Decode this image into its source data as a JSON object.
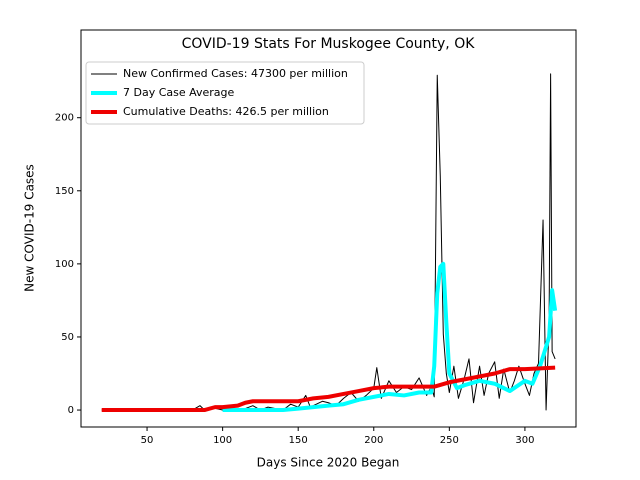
{
  "chart_data": {
    "type": "line",
    "title": "COVID-19 Stats For Muskogee County, OK",
    "x_label": "Days Since 2020 Began",
    "y_label": "New COVID-19 Cases",
    "xlim": [
      6.3,
      333.8
    ],
    "ylim": [
      -11.6,
      260
    ],
    "xticks": [
      50,
      100,
      150,
      200,
      250,
      300
    ],
    "yticks": [
      0,
      50,
      100,
      150,
      200
    ],
    "legend": "upper left",
    "series": [
      {
        "name": "New Confirmed Cases: 47300 per million",
        "color": "#000000",
        "line_width": 1,
        "x": [
          20,
          30,
          40,
          50,
          60,
          70,
          80,
          85,
          88,
          92,
          96,
          100,
          105,
          110,
          115,
          120,
          125,
          130,
          135,
          140,
          145,
          150,
          155,
          158,
          162,
          166,
          170,
          175,
          180,
          185,
          190,
          195,
          200,
          202,
          205,
          210,
          215,
          220,
          225,
          230,
          235,
          238,
          240,
          242,
          244,
          246,
          248,
          250,
          253,
          256,
          260,
          263,
          266,
          270,
          273,
          276,
          280,
          283,
          286,
          290,
          293,
          296,
          300,
          303,
          306,
          309,
          312,
          314,
          316,
          317,
          318,
          320
        ],
        "values": [
          0,
          0,
          0,
          0,
          0,
          0,
          0,
          3,
          0,
          2,
          1,
          0,
          2,
          0,
          1,
          3,
          0,
          2,
          1,
          0,
          4,
          2,
          10,
          2,
          4,
          6,
          5,
          3,
          8,
          12,
          6,
          10,
          15,
          29,
          8,
          20,
          12,
          16,
          14,
          22,
          10,
          16,
          9,
          229,
          160,
          52,
          25,
          12,
          30,
          8,
          22,
          35,
          5,
          30,
          10,
          25,
          33,
          8,
          28,
          12,
          20,
          30,
          18,
          10,
          25,
          32,
          130,
          0,
          60,
          230,
          40,
          35
        ]
      },
      {
        "name": "7 Day Case Average",
        "color": "#00ffff",
        "line_width": 4,
        "x": [
          100,
          110,
          120,
          130,
          140,
          150,
          160,
          170,
          180,
          190,
          200,
          210,
          220,
          230,
          238,
          240,
          242,
          244,
          246,
          248,
          250,
          255,
          260,
          270,
          280,
          290,
          300,
          305,
          310,
          313,
          316,
          318,
          320
        ],
        "values": [
          0,
          0,
          0,
          0,
          0,
          1,
          2,
          3,
          4,
          7,
          9,
          11,
          10,
          12,
          12,
          30,
          80,
          98,
          100,
          60,
          25,
          15,
          17,
          20,
          18,
          13,
          20,
          18,
          30,
          40,
          50,
          82,
          68
        ]
      },
      {
        "name": "Cumulative Deaths: 426.5 per million",
        "color": "#ee0000",
        "line_width": 4,
        "x": [
          20,
          88,
          95,
          100,
          110,
          115,
          120,
          150,
          160,
          170,
          180,
          190,
          200,
          210,
          240,
          250,
          260,
          270,
          280,
          290,
          300,
          320
        ],
        "values": [
          0,
          0,
          2,
          2,
          3,
          5,
          6,
          6,
          8,
          9,
          11,
          13,
          15,
          16,
          16,
          19,
          21,
          23,
          25,
          28,
          28,
          29
        ]
      }
    ]
  }
}
